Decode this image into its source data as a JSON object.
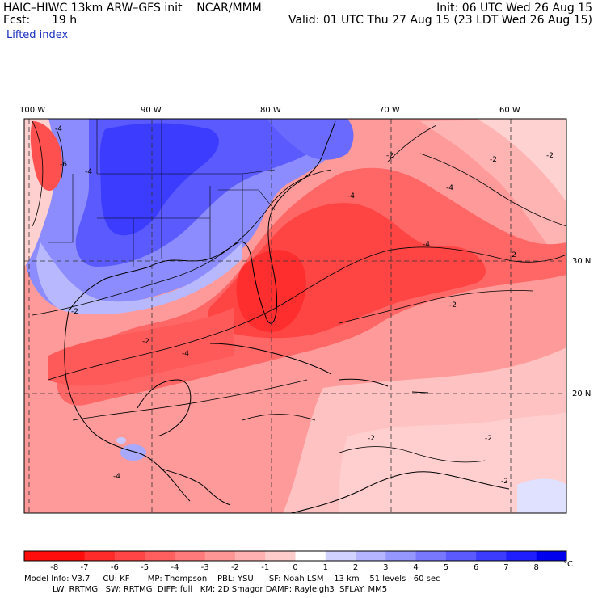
{
  "header": {
    "model_line": "HAIC–HIWC 13km ARW–GFS init    NCAR/MMM",
    "init_line": "Init: 06 UTC Wed 26 Aug 15",
    "fcst_label": "Fcst:",
    "fcst_value": "19 h",
    "valid_line": "Valid: 01 UTC Thu 27 Aug 15 (23 LDT Wed 26 Aug 15)",
    "field_name": "Lifted index"
  },
  "map": {
    "lon_labels": [
      "100 W",
      "90 W",
      "80 W",
      "70 W",
      "60 W"
    ],
    "lat_labels": [
      "30 N",
      "20 N"
    ],
    "contour_labels": [
      "-4",
      "-6",
      "-4",
      "-2",
      "-2",
      "-4",
      "-2",
      "-4",
      "-2",
      "-2",
      "-2",
      "-4",
      "-2",
      "-2",
      "-4",
      "-4",
      "-2",
      "-2"
    ],
    "colors": {
      "border": "#000000",
      "grid": "#333333",
      "coast": "#000000"
    }
  },
  "colorbar": {
    "labels": [
      "-8",
      "-7",
      "-6",
      "-5",
      "-4",
      "-3",
      "-2",
      "-1",
      "0",
      "1",
      "2",
      "3",
      "4",
      "5",
      "6",
      "7",
      "8"
    ],
    "unit": "°C",
    "colors": [
      "#ff0d0d",
      "#ff2a2a",
      "#ff4545",
      "#ff5f5f",
      "#ff7a7a",
      "#ff9696",
      "#ffb1b1",
      "#ffcccc",
      "#ffffff",
      "#d2d2ff",
      "#b4b4ff",
      "#9696ff",
      "#7878ff",
      "#5a5aff",
      "#3c3cff",
      "#1e1eff",
      "#0000ee"
    ]
  },
  "footer": {
    "line1": "Model Info: V3.7     CU: KF       MP: Thompson    PBL: YSU      SF: Noah LSM    13 km    51 levels   60 sec",
    "line2": "           LW: RRTMG   SW: RRTMG  DIFF: full   KM: 2D Smagor DAMP: Rayleigh3  SFLAY: MM5"
  }
}
